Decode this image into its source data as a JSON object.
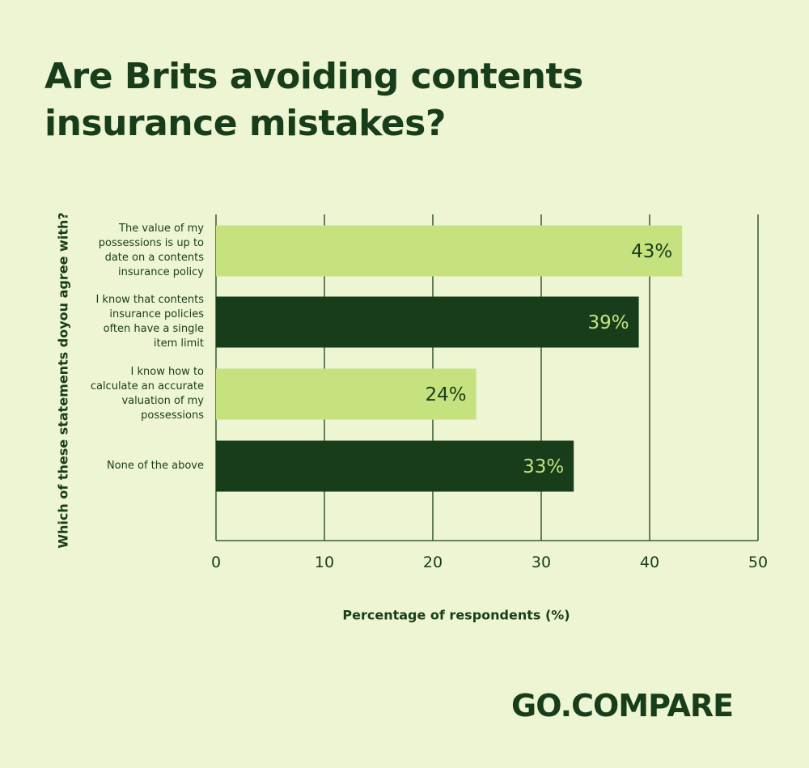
{
  "colors": {
    "background": "#eef5d2",
    "dark_green": "#173d1a",
    "light_green": "#c6e27e"
  },
  "logo_text": "GO.COMPARE",
  "chart_data": {
    "type": "bar",
    "orientation": "horizontal",
    "title": "Are Brits avoiding contents insurance mistakes?",
    "xlabel": "Percentage of respondents (%)",
    "ylabel": "Which of these statements doyou agree with?",
    "xlim": [
      0,
      50
    ],
    "xticks": [
      "0",
      "10",
      "20",
      "30",
      "40",
      "50"
    ],
    "grid": "vertical",
    "categories": [
      "The value of my possessions is up to date on a contents insurance policy",
      "I know that contents insurance policies often have a single item limit",
      "I know how to calculate an accurate valuation of my possessions",
      "None of the above"
    ],
    "values": [
      43,
      39,
      24,
      33
    ],
    "data_labels": [
      "43%",
      "39%",
      "24%",
      "33%"
    ],
    "bar_colors": [
      "#c6e27e",
      "#173d1a",
      "#c6e27e",
      "#173d1a"
    ],
    "label_colors": [
      "#173d1a",
      "#c6e27e",
      "#173d1a",
      "#c6e27e"
    ]
  }
}
